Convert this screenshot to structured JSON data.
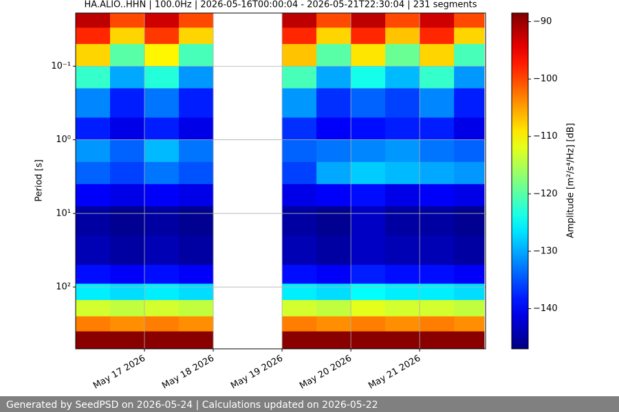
{
  "chart_data": {
    "type": "heatmap",
    "title": "HA.ALIO..HHN | 100.0Hz | 2026-05-16T00:00:04 - 2026-05-21T22:30:04 | 231 segments",
    "ylabel": "Period [s]",
    "colorbar_label": "Amplitude [m²/s⁴/Hz] [dB]",
    "colormap": "jet",
    "ylog": true,
    "y_inverted": true,
    "grid": true,
    "xlim": [
      "2026-05-16T00:00",
      "2026-05-21T23:00"
    ],
    "ylim": [
      0.019,
      690
    ],
    "clim": [
      -147,
      -88.5
    ],
    "xticks": [
      {
        "value": "2026-05-17T00:00",
        "label": "May 17 2026"
      },
      {
        "value": "2026-05-18T00:00",
        "label": "May 18 2026"
      },
      {
        "value": "2026-05-19T00:00",
        "label": "May 19 2026"
      },
      {
        "value": "2026-05-20T00:00",
        "label": "May 20 2026"
      },
      {
        "value": "2026-05-21T00:00",
        "label": "May 21 2026"
      }
    ],
    "yticks": [
      {
        "value": 0.1,
        "label": "10⁻¹"
      },
      {
        "value": 1,
        "label": "10⁰"
      },
      {
        "value": 10,
        "label": "10¹"
      },
      {
        "value": 100,
        "label": "10²"
      }
    ],
    "cticks": [
      {
        "value": -90,
        "label": "−90"
      },
      {
        "value": -100,
        "label": "−100"
      },
      {
        "value": -110,
        "label": "−110"
      },
      {
        "value": -120,
        "label": "−120"
      },
      {
        "value": -130,
        "label": "−130"
      },
      {
        "value": -140,
        "label": "−140"
      }
    ],
    "x_bins": [
      "2026-05-16T00:00",
      "2026-05-16T12:00",
      "2026-05-17T00:00",
      "2026-05-17T12:00",
      "2026-05-18T00:00",
      "2026-05-18T12:00",
      "2026-05-19T00:00",
      "2026-05-19T12:00",
      "2026-05-20T00:00",
      "2026-05-20T12:00",
      "2026-05-21T00:00",
      "2026-05-21T12:00",
      "2026-05-21T22:30"
    ],
    "y_bins": [
      0.019,
      0.03,
      0.05,
      0.1,
      0.2,
      0.5,
      1,
      2,
      4,
      8,
      20,
      50,
      90,
      150,
      250,
      400,
      690
    ],
    "values": [
      [
        -92,
        -100,
        -93,
        -100,
        null,
        null,
        -92,
        -100,
        -92,
        -100,
        -93,
        -100
      ],
      [
        -98,
        -108,
        -99,
        -108,
        null,
        null,
        -98,
        -108,
        -98,
        -107,
        -98,
        -108
      ],
      [
        -108,
        -120,
        -110,
        -121,
        null,
        null,
        -107,
        -120,
        -109,
        -119,
        -108,
        -121
      ],
      [
        -122,
        -130,
        -123,
        -131,
        null,
        null,
        -121,
        -130,
        -124,
        -129,
        -122,
        -131
      ],
      [
        -132,
        -138,
        -133,
        -138,
        null,
        null,
        -131,
        -137,
        -134,
        -136,
        -132,
        -138
      ],
      [
        -138,
        -141,
        -138,
        -141,
        null,
        null,
        -137,
        -140,
        -139,
        -138,
        -138,
        -141
      ],
      [
        -131,
        -134,
        -129,
        -133,
        null,
        null,
        -134,
        -133,
        -132,
        -131,
        -133,
        -134
      ],
      [
        -134,
        -136,
        -133,
        -135,
        null,
        null,
        -136,
        -130,
        -128,
        -129,
        -130,
        -131
      ],
      [
        -140,
        -141,
        -140,
        -141,
        null,
        null,
        -141,
        -140,
        -139,
        -141,
        -140,
        -141
      ],
      [
        -145,
        -146,
        -145,
        -146,
        null,
        null,
        -145,
        -146,
        -143,
        -145,
        -145,
        -146
      ],
      [
        -144,
        -145,
        -144,
        -145,
        null,
        null,
        -144,
        -145,
        -143,
        -144,
        -144,
        -145
      ],
      [
        -139,
        -140,
        -139,
        -140,
        null,
        null,
        -139,
        -140,
        -138,
        -139,
        -139,
        -140
      ],
      [
        -126,
        -127,
        -126,
        -127,
        null,
        null,
        -126,
        -127,
        -125,
        -126,
        -126,
        -127
      ],
      [
        -113,
        -114,
        -113,
        -114,
        null,
        null,
        -113,
        -114,
        -112,
        -113,
        -113,
        -114
      ],
      [
        -103,
        -104,
        -103,
        -104,
        null,
        null,
        -103,
        -104,
        -103,
        -104,
        -103,
        -104
      ],
      [
        -89,
        -89,
        -89,
        -89,
        null,
        null,
        -89,
        -89,
        -89,
        -89,
        -89,
        -89
      ]
    ]
  },
  "footer": "Generated by SeedPSD on 2026-05-24 | Calculations updated on 2026-05-22"
}
